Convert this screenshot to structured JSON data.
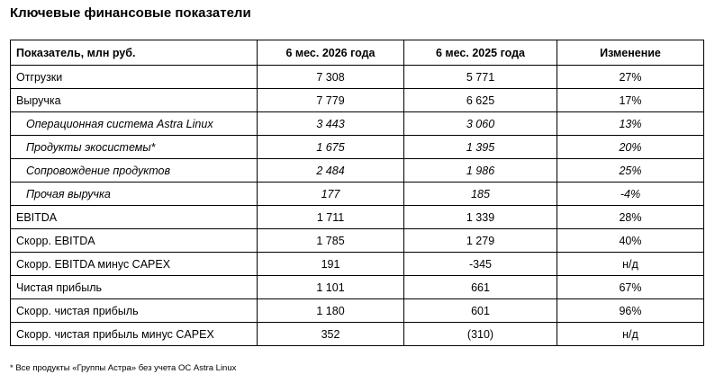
{
  "title": "Ключевые финансовые показатели",
  "table": {
    "headers": [
      "Показатель, млн руб.",
      "6 мес. 2026 года",
      "6 мес. 2025 года",
      "Изменение"
    ],
    "rows": [
      {
        "label": "Отгрузки",
        "v2026": "7 308",
        "v2025": "5 771",
        "change": "27%",
        "sub": false
      },
      {
        "label": "Выручка",
        "v2026": "7 779",
        "v2025": "6 625",
        "change": "17%",
        "sub": false
      },
      {
        "label": "Операционная система Astra Linux",
        "v2026": "3 443",
        "v2025": "3 060",
        "change": "13%",
        "sub": true
      },
      {
        "label": "Продукты экосистемы*",
        "v2026": "1 675",
        "v2025": "1 395",
        "change": "20%",
        "sub": true
      },
      {
        "label": "Сопровождение продуктов",
        "v2026": "2 484",
        "v2025": "1 986",
        "change": "25%",
        "sub": true
      },
      {
        "label": "Прочая выручка",
        "v2026": "177",
        "v2025": "185",
        "change": "-4%",
        "sub": true
      },
      {
        "label": "EBITDA",
        "v2026": "1 711",
        "v2025": "1 339",
        "change": "28%",
        "sub": false
      },
      {
        "label": "Скорр. EBITDA",
        "v2026": "1 785",
        "v2025": "1 279",
        "change": "40%",
        "sub": false
      },
      {
        "label": "Скорр. EBITDA минус CAPEX",
        "v2026": "191",
        "v2025": "-345",
        "change": "н/д",
        "sub": false
      },
      {
        "label": "Чистая прибыль",
        "v2026": "1 101",
        "v2025": "661",
        "change": "67%",
        "sub": false
      },
      {
        "label": "Скорр. чистая прибыль",
        "v2026": "1 180",
        "v2025": "601",
        "change": "96%",
        "sub": false
      },
      {
        "label": "Скорр. чистая прибыль минус CAPEX",
        "v2026": "352",
        "v2025": "(310)",
        "change": "н/д",
        "sub": false
      }
    ]
  },
  "footnote": "* Все продукты «Группы Астра» без учета ОС Astra Linux"
}
